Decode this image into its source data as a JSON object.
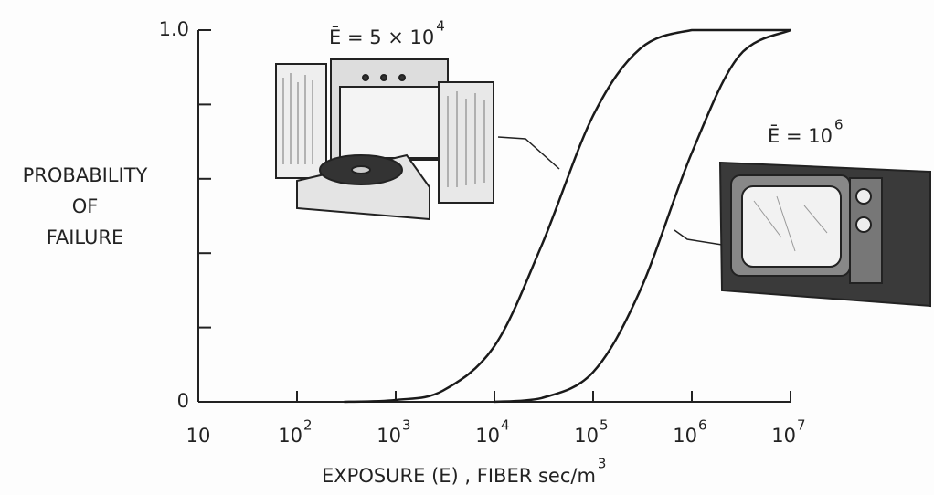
{
  "chart_data": {
    "type": "line",
    "y_label_lines": [
      "PROBABILITY",
      "OF",
      "FAILURE"
    ],
    "x_label": {
      "text": "EXPOSURE (E) , FIBER sec/m",
      "sup": "3"
    },
    "log_x": true,
    "xlim": [
      10,
      10000000
    ],
    "ylim": [
      0,
      1
    ],
    "xticks": [
      {
        "value": 10,
        "label": "10"
      },
      {
        "value": 100,
        "label": "10",
        "sup": "2"
      },
      {
        "value": 1000,
        "label": "10",
        "sup": "3"
      },
      {
        "value": 10000,
        "label": "10",
        "sup": "4"
      },
      {
        "value": 100000,
        "label": "10",
        "sup": "5"
      },
      {
        "value": 1000000,
        "label": "10",
        "sup": "6"
      },
      {
        "value": 10000000,
        "label": "10",
        "sup": "7"
      }
    ],
    "yticks": [
      0,
      {
        "value": 1,
        "label": "1.0"
      }
    ],
    "yminor_ticks": [
      0.2,
      0.4,
      0.6,
      0.8
    ],
    "x": [
      300,
      1000,
      3000,
      10000,
      30000,
      100000,
      300000,
      1000000,
      3000000,
      10000000
    ],
    "series": [
      {
        "annotation": {
          "text": "Ē = 5 × 10",
          "sup": "4"
        },
        "color": "#1a1a1a",
        "values": [
          0,
          0.005,
          0.03,
          0.15,
          0.42,
          0.77,
          0.95,
          1,
          1,
          1
        ]
      },
      {
        "annotation": {
          "text": "Ē = 10",
          "sup": "6"
        },
        "color": "#1a1a1a",
        "values": [
          null,
          null,
          null,
          0,
          0.01,
          0.08,
          0.3,
          0.67,
          0.93,
          1
        ]
      }
    ]
  }
}
